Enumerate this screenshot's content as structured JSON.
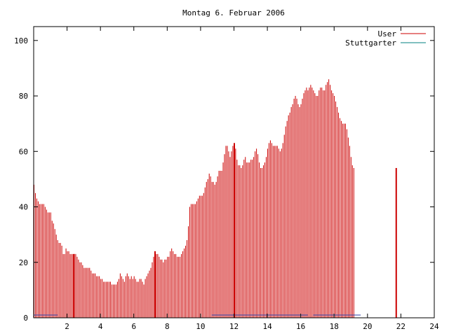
{
  "chart_data": {
    "type": "bar",
    "title": "Montag 6. Februar 2006",
    "xlabel": "",
    "ylabel": "",
    "xlim": [
      0,
      24
    ],
    "ylim": [
      0,
      105
    ],
    "x_ticks": [
      2,
      4,
      6,
      8,
      10,
      12,
      14,
      16,
      18,
      20,
      22,
      24
    ],
    "y_ticks": [
      0,
      20,
      40,
      60,
      80,
      100
    ],
    "grid": false,
    "legend_position": "top-right",
    "colors": {
      "user": "#cc0000",
      "stuttgarter": "#008080",
      "axis": "#000000"
    },
    "series": [
      {
        "name": "User",
        "sample_interval_hours": 0.0833,
        "values": [
          48,
          45,
          43,
          42,
          41,
          41,
          41,
          41,
          40,
          39,
          38,
          38,
          38,
          35,
          34,
          32,
          30,
          28,
          27,
          27,
          26,
          23,
          23,
          25,
          24,
          24,
          23,
          23,
          23,
          23,
          23,
          22,
          21,
          20,
          20,
          19,
          18,
          18,
          18,
          18,
          18,
          17,
          16,
          16,
          16,
          15,
          15,
          15,
          14,
          14,
          13,
          13,
          13,
          13,
          13,
          13,
          12,
          12,
          12,
          12,
          13,
          14,
          16,
          15,
          14,
          13,
          15,
          16,
          15,
          14,
          15,
          14,
          15,
          14,
          13,
          13,
          14,
          14,
          13,
          12,
          14,
          15,
          16,
          17,
          18,
          20,
          22,
          24,
          23,
          23,
          22,
          21,
          21,
          20,
          21,
          21,
          22,
          22,
          24,
          25,
          24,
          23,
          23,
          22,
          22,
          22,
          23,
          24,
          25,
          26,
          28,
          33,
          40,
          41,
          41,
          41,
          41,
          42,
          43,
          44,
          44,
          44,
          45,
          47,
          49,
          50,
          52,
          51,
          49,
          49,
          48,
          49,
          51,
          53,
          53,
          53,
          56,
          59,
          62,
          62,
          60,
          58,
          60,
          62,
          63,
          61,
          57,
          55,
          55,
          54,
          55,
          57,
          58,
          56,
          56,
          56,
          57,
          57,
          58,
          60,
          61,
          59,
          56,
          54,
          54,
          55,
          56,
          58,
          61,
          63,
          64,
          63,
          62,
          62,
          62,
          62,
          61,
          60,
          61,
          63,
          66,
          69,
          71,
          73,
          74,
          76,
          77,
          79,
          80,
          79,
          77,
          76,
          77,
          79,
          81,
          82,
          83,
          82,
          83,
          84,
          83,
          82,
          81,
          80,
          80,
          82,
          83,
          83,
          82,
          82,
          84,
          85,
          86,
          84,
          82,
          81,
          80,
          78,
          76,
          74,
          72,
          71,
          70,
          70,
          70,
          68,
          65,
          62,
          58,
          55,
          54
        ]
      },
      {
        "name": "Stuttgarter",
        "sample_interval_hours": 0.0833,
        "values": [
          1,
          1,
          1,
          1,
          1,
          1,
          1,
          1,
          1,
          1,
          1,
          1,
          1,
          1,
          1,
          1,
          1,
          0,
          0,
          0,
          0,
          0,
          0,
          0,
          0,
          0,
          0,
          0,
          0,
          0,
          0,
          0,
          0,
          0,
          0,
          0,
          0,
          0,
          0,
          0,
          0,
          0,
          0,
          0,
          0,
          0,
          0,
          0,
          0,
          0,
          0,
          0,
          0,
          0,
          0,
          0,
          0,
          0,
          0,
          0,
          0,
          0,
          0,
          0,
          0,
          0,
          0,
          0,
          0,
          0,
          0,
          0,
          0,
          0,
          0,
          0,
          0,
          0,
          0,
          0,
          0,
          0,
          0,
          0,
          0,
          0,
          0,
          0,
          0,
          0,
          0,
          0,
          0,
          0,
          0,
          0,
          0,
          0,
          0,
          0,
          0,
          0,
          0,
          0,
          0,
          0,
          0,
          0,
          0,
          0,
          0,
          0,
          0,
          0,
          0,
          0,
          0,
          0,
          0,
          0,
          0,
          0,
          0,
          0,
          0,
          0,
          0,
          0,
          1,
          1,
          1,
          1,
          1,
          1,
          1,
          1,
          1,
          1,
          1,
          1,
          1,
          1,
          1,
          1,
          1,
          1,
          1,
          1,
          1,
          1,
          1,
          1,
          1,
          1,
          1,
          1,
          1,
          1,
          1,
          1,
          1,
          1,
          1,
          1,
          1,
          1,
          1,
          1,
          1,
          1,
          1,
          1,
          1,
          1,
          1,
          1,
          1,
          1,
          1,
          1,
          1,
          1,
          1,
          1,
          1,
          1,
          1,
          1,
          1,
          1,
          1,
          1,
          1,
          1,
          1,
          1,
          1,
          0,
          0,
          0,
          0,
          1,
          1,
          1,
          1,
          1,
          1,
          1,
          1,
          1,
          1,
          1,
          1,
          1,
          1,
          1,
          1,
          1,
          1,
          1,
          1,
          1,
          1,
          1,
          1,
          1,
          1,
          1,
          1,
          1,
          1,
          1,
          1,
          1,
          1
        ]
      }
    ],
    "highlight_x": [
      2.4,
      7.25,
      12.0,
      21.7
    ]
  }
}
